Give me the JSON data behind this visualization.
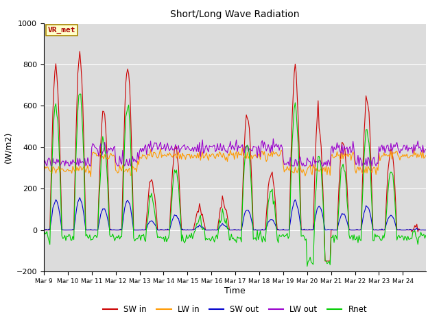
{
  "title": "Short/Long Wave Radiation",
  "xlabel": "Time",
  "ylabel": "(W/m2)",
  "ylim": [
    -200,
    1000
  ],
  "bg_color": "#dcdcdc",
  "legend_labels": [
    "SW in",
    "LW in",
    "SW out",
    "LW out",
    "Rnet"
  ],
  "legend_colors": [
    "#cc0000",
    "#ff9900",
    "#0000cc",
    "#9900cc",
    "#00cc00"
  ],
  "station_label": "VR_met",
  "x_tick_labels": [
    "Mar 9",
    "Mar 10",
    "Mar 11",
    "Mar 12",
    "Mar 13",
    "Mar 14",
    "Mar 15",
    "Mar 16",
    "Mar 17",
    "Mar 18",
    "Mar 19",
    "Mar 20",
    "Mar 21",
    "Mar 22",
    "Mar 23",
    "Mar 24"
  ],
  "n_points": 384,
  "pts_per_day": 24,
  "sw_peaks": [
    800,
    860,
    580,
    790,
    240,
    410,
    100,
    130,
    560,
    280,
    770,
    640,
    430,
    640,
    400,
    0
  ],
  "lw_base": 330,
  "seed": 42
}
